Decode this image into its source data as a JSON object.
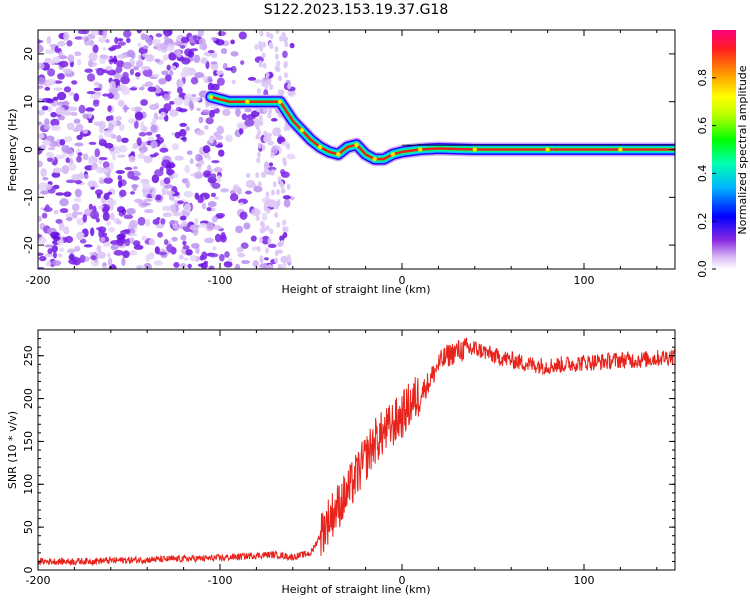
{
  "title": "S122.2023.153.19.37.G18",
  "colors": {
    "snr_line": "#e8231c",
    "ridge_core": "#e8231c",
    "scatter": "#7a22e6",
    "scatter_light": "#d6b8f5"
  },
  "chart_data": [
    {
      "type": "heatmap",
      "xlabel": "Height of straight line (km)",
      "ylabel": "Frequency (Hz)",
      "xlim": [
        -200,
        150
      ],
      "ylim": [
        -25,
        25
      ],
      "xticks": [
        -200,
        -100,
        0,
        100
      ],
      "xtick_labels": [
        "-200",
        "-100",
        "0",
        "100"
      ],
      "yticks": [
        -20,
        -10,
        0,
        10,
        20
      ],
      "ytick_labels": [
        "-20",
        "-10",
        "0",
        "10",
        "20"
      ],
      "grid": false,
      "colorbar": {
        "label": "Normalized spectral amplitude",
        "range": [
          0,
          1
        ],
        "ticks": [
          0.0,
          0.2,
          0.4,
          0.6,
          0.8
        ],
        "tick_labels": [
          "0.0",
          "0.2",
          "0.4",
          "0.6",
          "0.8"
        ],
        "colormap": "rainbow"
      },
      "ridge": {
        "x": [
          -105,
          -95,
          -85,
          -75,
          -67,
          -60,
          -55,
          -50,
          -45,
          -40,
          -35,
          -30,
          -25,
          -20,
          -15,
          -10,
          -5,
          0,
          10,
          20,
          40,
          60,
          80,
          100,
          120,
          150
        ],
        "y": [
          11,
          10,
          10,
          10,
          10,
          6,
          4,
          2,
          0.5,
          -0.5,
          -1,
          0.5,
          1,
          -1,
          -2,
          -2,
          -1,
          -0.5,
          0,
          0.2,
          0,
          0,
          0,
          0,
          0,
          0
        ]
      },
      "noise_region_x": [
        -200,
        -60
      ]
    },
    {
      "type": "line",
      "xlabel": "Height of straight line (km)",
      "ylabel": "SNR (10 * v/v)",
      "xlim": [
        -200,
        150
      ],
      "ylim": [
        0,
        280
      ],
      "xticks": [
        -200,
        -100,
        0,
        100
      ],
      "xtick_labels": [
        "-200",
        "-100",
        "0",
        "100"
      ],
      "yticks": [
        0,
        50,
        100,
        150,
        200,
        250
      ],
      "ytick_labels": [
        "0",
        "50",
        "100",
        "150",
        "200",
        "250"
      ],
      "grid": false,
      "series": [
        {
          "x": [
            -200,
            -180,
            -160,
            -140,
            -120,
            -100,
            -80,
            -70,
            -60,
            -50,
            -45,
            -40,
            -35,
            -30,
            -25,
            -20,
            -15,
            -10,
            -5,
            0,
            5,
            10,
            15,
            20,
            25,
            30,
            35,
            40,
            45,
            50,
            60,
            70,
            80,
            90,
            100,
            110,
            120,
            130,
            140,
            150
          ],
          "values": [
            10,
            10,
            11,
            12,
            13,
            14,
            17,
            18,
            15,
            20,
            40,
            60,
            75,
            90,
            110,
            130,
            150,
            160,
            170,
            180,
            195,
            205,
            220,
            240,
            250,
            255,
            258,
            258,
            255,
            250,
            245,
            240,
            238,
            240,
            242,
            243,
            245,
            245,
            247,
            250
          ]
        }
      ]
    }
  ]
}
